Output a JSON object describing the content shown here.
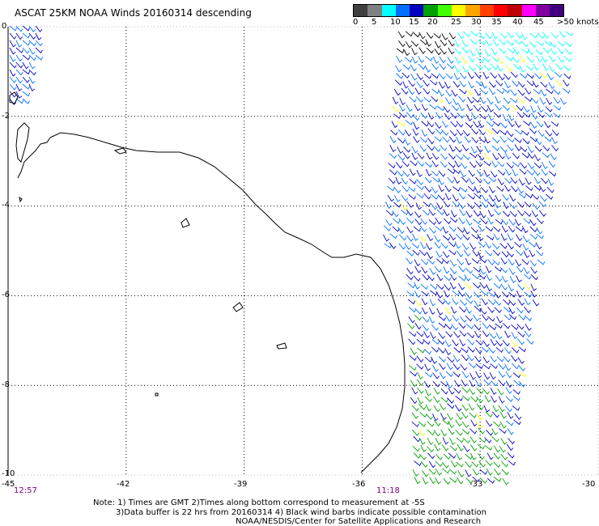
{
  "header": {
    "title": "ASCAT 25KM NOAA Winds 20160314 descending"
  },
  "legend": {
    "ticks": [
      "0",
      "5",
      "10",
      "15",
      "20",
      "25",
      "30",
      "35",
      "40",
      "45",
      ">50 knots"
    ],
    "colors": [
      "#404040",
      "#808080",
      "#00ffff",
      "#0070ff",
      "#0000c0",
      "#00a000",
      "#40ff00",
      "#ffff00",
      "#ffa500",
      "#ff4000",
      "#ff0000",
      "#c00000",
      "#ff00ff",
      "#8000a0",
      "#400080"
    ]
  },
  "axes": {
    "y_ticks": [
      "-2",
      "-4",
      "-6",
      "-8",
      "-10"
    ],
    "y_top_label": "0",
    "x_ticks": [
      "-45",
      "-42",
      "-39",
      "-36",
      "-33",
      "-30"
    ]
  },
  "times": {
    "left": "12:57",
    "right": "11:18"
  },
  "notes": {
    "line1": "Note: 1) Times are GMT 2)Times along bottom correspond to measurement at -5S",
    "line2": "3)Data buffer is 22 hrs from 20160314 4) Black wind barbs indicate possible contamination",
    "line3": "NOAA/NESDIS/Center for Satellite Applications and Research"
  },
  "map": {
    "lon_range": [
      -45,
      -30
    ],
    "lat_range": [
      -10,
      0
    ],
    "grid": "dotted",
    "coastline": "black",
    "wind_swath_colors": [
      "#0000c0",
      "#0070ff",
      "#00ffff",
      "#00a000",
      "#ffff00",
      "#000000"
    ]
  }
}
